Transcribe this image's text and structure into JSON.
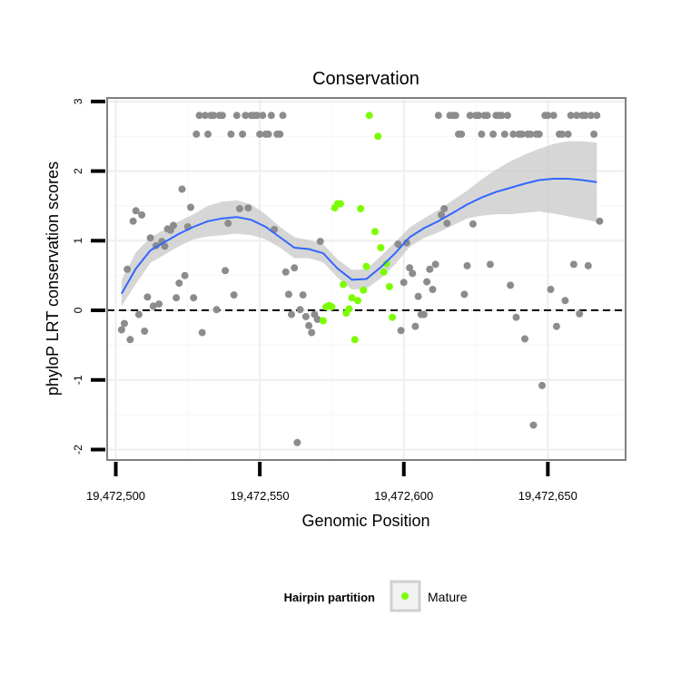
{
  "chart_data": {
    "type": "scatter",
    "title": "Conservation",
    "xlabel": "Genomic Position",
    "ylabel": "phyloP LRT conservation scores",
    "xlim": [
      19472497,
      19472677
    ],
    "ylim": [
      -2.15,
      3.05
    ],
    "x_ticks": [
      19472500,
      19472550,
      19472600,
      19472650
    ],
    "x_tick_labels": [
      "19,472,500",
      "19,472,550",
      "19,472,600",
      "19,472,650"
    ],
    "y_ticks": [
      -2,
      -1,
      0,
      1,
      2,
      3
    ],
    "y_tick_labels": [
      "-2",
      "-1",
      "0",
      "1",
      "2",
      "3"
    ],
    "reference_line_y": 0,
    "grid": true,
    "legend": {
      "title": "Hairpin partition",
      "position": "bottom",
      "entries": [
        {
          "label": "Mature",
          "color": "#7cfc00"
        }
      ]
    },
    "colors": {
      "other": "#8c8c8c",
      "mature": "#7cfc00",
      "smooth": "#3366ff",
      "ribbon": "#c8c8c8",
      "panel_border": "#7f7f7f"
    },
    "smooth": {
      "x": [
        19472502,
        19472507,
        19472512,
        19472517,
        19472522,
        19472527,
        19472532,
        19472537,
        19472542,
        19472547,
        19472552,
        19472557,
        19472562,
        19472567,
        19472572,
        19472577,
        19472582,
        19472587,
        19472592,
        19472597,
        19472602,
        19472607,
        19472612,
        19472617,
        19472622,
        19472627,
        19472632,
        19472637,
        19472642,
        19472647,
        19472652,
        19472657,
        19472662,
        19472667
      ],
      "y": [
        0.24,
        0.6,
        0.86,
        0.98,
        1.1,
        1.2,
        1.28,
        1.32,
        1.34,
        1.3,
        1.2,
        1.05,
        0.9,
        0.88,
        0.82,
        0.6,
        0.44,
        0.45,
        0.62,
        0.82,
        1.05,
        1.18,
        1.28,
        1.4,
        1.52,
        1.62,
        1.7,
        1.76,
        1.82,
        1.87,
        1.89,
        1.89,
        1.87,
        1.84
      ],
      "upper": [
        0.44,
        0.83,
        1.05,
        1.16,
        1.28,
        1.38,
        1.5,
        1.56,
        1.58,
        1.52,
        1.38,
        1.2,
        1.05,
        1.01,
        0.95,
        0.73,
        0.58,
        0.59,
        0.78,
        0.98,
        1.19,
        1.32,
        1.44,
        1.58,
        1.72,
        1.88,
        2.02,
        2.14,
        2.24,
        2.32,
        2.39,
        2.43,
        2.43,
        2.41
      ],
      "lower": [
        0.06,
        0.38,
        0.68,
        0.8,
        0.92,
        1.02,
        1.06,
        1.08,
        1.1,
        1.08,
        1.02,
        0.9,
        0.75,
        0.75,
        0.69,
        0.47,
        0.3,
        0.31,
        0.46,
        0.66,
        0.91,
        1.04,
        1.12,
        1.22,
        1.32,
        1.36,
        1.38,
        1.38,
        1.4,
        1.42,
        1.39,
        1.35,
        1.31,
        1.27
      ]
    },
    "series": [
      {
        "name": "Mature",
        "color": "#7cfc00",
        "points": [
          [
            19472572,
            -0.15
          ],
          [
            19472573,
            0.05
          ],
          [
            19472574,
            0.07
          ],
          [
            19472575,
            0.05
          ],
          [
            19472576,
            1.47
          ],
          [
            19472577,
            1.53
          ],
          [
            19472578,
            1.53
          ],
          [
            19472579,
            0.37
          ],
          [
            19472580,
            -0.04
          ],
          [
            19472581,
            0.02
          ],
          [
            19472582,
            0.18
          ],
          [
            19472583,
            -0.42
          ],
          [
            19472584,
            0.14
          ],
          [
            19472585,
            1.46
          ],
          [
            19472586,
            0.29
          ],
          [
            19472587,
            0.63
          ],
          [
            19472588,
            2.8
          ],
          [
            19472590,
            1.13
          ],
          [
            19472591,
            2.5
          ],
          [
            19472592,
            0.9
          ],
          [
            19472593,
            0.55
          ],
          [
            19472594,
            0.67
          ],
          [
            19472595,
            0.34
          ],
          [
            19472596,
            -0.1
          ]
        ]
      },
      {
        "color": "#8c8c8c",
        "points": [
          [
            19472502,
            -0.28
          ],
          [
            19472503,
            -0.19
          ],
          [
            19472504,
            0.59
          ],
          [
            19472505,
            -0.42
          ],
          [
            19472506,
            1.28
          ],
          [
            19472507,
            1.43
          ],
          [
            19472508,
            -0.06
          ],
          [
            19472509,
            1.37
          ],
          [
            19472510,
            -0.3
          ],
          [
            19472511,
            0.19
          ],
          [
            19472512,
            1.04
          ],
          [
            19472513,
            0.06
          ],
          [
            19472514,
            0.93
          ],
          [
            19472515,
            0.09
          ],
          [
            19472516,
            0.99
          ],
          [
            19472517,
            0.92
          ],
          [
            19472518,
            1.17
          ],
          [
            19472519,
            1.15
          ],
          [
            19472520,
            1.22
          ],
          [
            19472521,
            0.18
          ],
          [
            19472522,
            0.39
          ],
          [
            19472523,
            1.74
          ],
          [
            19472524,
            0.5
          ],
          [
            19472525,
            1.2
          ],
          [
            19472526,
            1.48
          ],
          [
            19472527,
            0.18
          ],
          [
            19472528,
            2.53
          ],
          [
            19472529,
            2.8
          ],
          [
            19472530,
            -0.32
          ],
          [
            19472531,
            2.8
          ],
          [
            19472532,
            2.53
          ],
          [
            19472533,
            2.8
          ],
          [
            19472534,
            2.8
          ],
          [
            19472535,
            0.01
          ],
          [
            19472536,
            2.8
          ],
          [
            19472537,
            2.8
          ],
          [
            19472538,
            0.57
          ],
          [
            19472539,
            1.25
          ],
          [
            19472540,
            2.53
          ],
          [
            19472541,
            0.22
          ],
          [
            19472542,
            2.8
          ],
          [
            19472543,
            1.46
          ],
          [
            19472544,
            2.53
          ],
          [
            19472545,
            2.8
          ],
          [
            19472546,
            1.47
          ],
          [
            19472547,
            2.8
          ],
          [
            19472548,
            2.8
          ],
          [
            19472549,
            2.8
          ],
          [
            19472550,
            2.53
          ],
          [
            19472551,
            2.8
          ],
          [
            19472552,
            2.53
          ],
          [
            19472553,
            2.53
          ],
          [
            19472554,
            2.8
          ],
          [
            19472555,
            1.16
          ],
          [
            19472556,
            2.53
          ],
          [
            19472557,
            2.53
          ],
          [
            19472558,
            2.8
          ],
          [
            19472559,
            0.55
          ],
          [
            19472560,
            0.23
          ],
          [
            19472561,
            -0.06
          ],
          [
            19472562,
            0.61
          ],
          [
            19472563,
            -1.9
          ],
          [
            19472564,
            0.01
          ],
          [
            19472565,
            0.22
          ],
          [
            19472566,
            -0.09
          ],
          [
            19472567,
            -0.22
          ],
          [
            19472568,
            -0.32
          ],
          [
            19472569,
            -0.06
          ],
          [
            19472570,
            -0.13
          ],
          [
            19472571,
            0.99
          ],
          [
            19472598,
            0.95
          ],
          [
            19472599,
            -0.29
          ],
          [
            19472600,
            0.4
          ],
          [
            19472601,
            0.97
          ],
          [
            19472602,
            0.61
          ],
          [
            19472603,
            0.53
          ],
          [
            19472604,
            -0.23
          ],
          [
            19472605,
            0.2
          ],
          [
            19472606,
            -0.06
          ],
          [
            19472607,
            -0.06
          ],
          [
            19472608,
            0.41
          ],
          [
            19472609,
            0.59
          ],
          [
            19472610,
            0.3
          ],
          [
            19472611,
            0.66
          ],
          [
            19472612,
            2.8
          ],
          [
            19472613,
            1.37
          ],
          [
            19472614,
            1.46
          ],
          [
            19472615,
            1.25
          ],
          [
            19472616,
            2.8
          ],
          [
            19472617,
            2.8
          ],
          [
            19472618,
            2.8
          ],
          [
            19472619,
            2.53
          ],
          [
            19472620,
            2.53
          ],
          [
            19472621,
            0.23
          ],
          [
            19472622,
            0.64
          ],
          [
            19472623,
            2.8
          ],
          [
            19472624,
            1.24
          ],
          [
            19472625,
            2.8
          ],
          [
            19472626,
            2.8
          ],
          [
            19472627,
            2.53
          ],
          [
            19472628,
            2.8
          ],
          [
            19472629,
            2.8
          ],
          [
            19472630,
            0.66
          ],
          [
            19472631,
            2.53
          ],
          [
            19472632,
            2.8
          ],
          [
            19472633,
            2.8
          ],
          [
            19472634,
            2.8
          ],
          [
            19472635,
            2.53
          ],
          [
            19472636,
            2.8
          ],
          [
            19472637,
            0.36
          ],
          [
            19472638,
            2.53
          ],
          [
            19472639,
            -0.1
          ],
          [
            19472640,
            2.53
          ],
          [
            19472641,
            2.53
          ],
          [
            19472642,
            -0.41
          ],
          [
            19472643,
            2.53
          ],
          [
            19472644,
            2.53
          ],
          [
            19472645,
            -1.65
          ],
          [
            19472646,
            2.53
          ],
          [
            19472647,
            2.53
          ],
          [
            19472648,
            -1.08
          ],
          [
            19472649,
            2.8
          ],
          [
            19472650,
            2.8
          ],
          [
            19472651,
            0.3
          ],
          [
            19472652,
            2.8
          ],
          [
            19472653,
            -0.23
          ],
          [
            19472654,
            2.53
          ],
          [
            19472655,
            2.53
          ],
          [
            19472656,
            0.14
          ],
          [
            19472657,
            2.53
          ],
          [
            19472658,
            2.8
          ],
          [
            19472659,
            0.66
          ],
          [
            19472660,
            2.8
          ],
          [
            19472661,
            -0.05
          ],
          [
            19472662,
            2.8
          ],
          [
            19472663,
            2.8
          ],
          [
            19472664,
            0.64
          ],
          [
            19472665,
            2.8
          ],
          [
            19472666,
            2.53
          ],
          [
            19472667,
            2.8
          ],
          [
            19472668,
            1.28
          ]
        ]
      }
    ]
  }
}
